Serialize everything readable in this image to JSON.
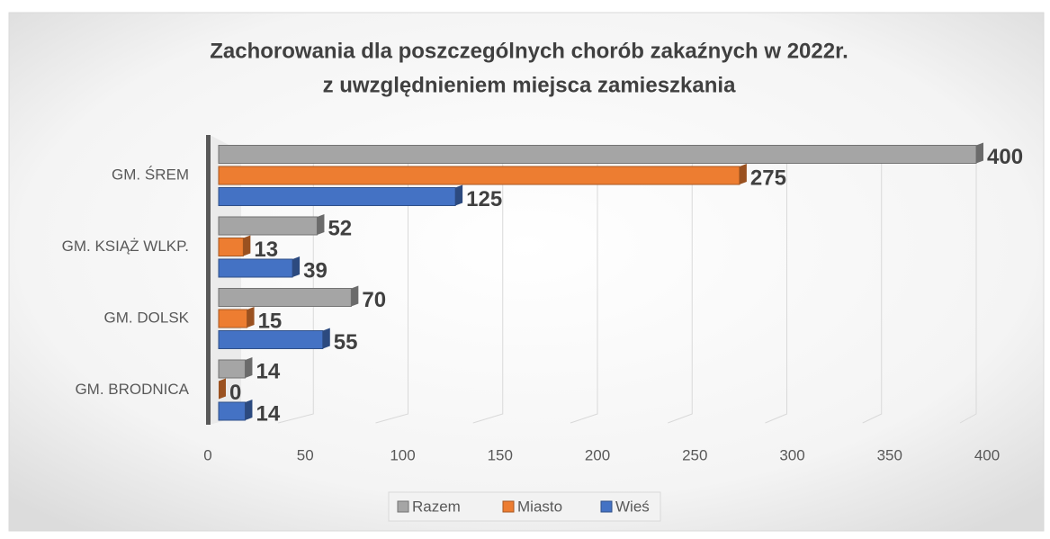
{
  "chart_data": {
    "type": "bar",
    "orientation": "horizontal",
    "title": [
      "Zachorowania dla poszczególnych chorób zakaźnych w 2022r.",
      "z uwzględnieniem miejsca zamieszkania"
    ],
    "categories": [
      "GM. ŚREM",
      "GM. KSIĄŻ WLKP.",
      "GM. DOLSK",
      "GM. BRODNICA"
    ],
    "series": [
      {
        "name": "Razem",
        "color": "#a5a5a5",
        "values": [
          400,
          52,
          70,
          14
        ]
      },
      {
        "name": "Miasto",
        "color": "#ed7d31",
        "values": [
          275,
          13,
          15,
          0
        ]
      },
      {
        "name": "Wieś",
        "color": "#4472c4",
        "values": [
          125,
          39,
          55,
          14
        ]
      }
    ],
    "xlim": [
      0,
      400
    ],
    "xticks": [
      0,
      50,
      100,
      150,
      200,
      250,
      300,
      350,
      400
    ],
    "grid": true,
    "legend": "bottom"
  }
}
